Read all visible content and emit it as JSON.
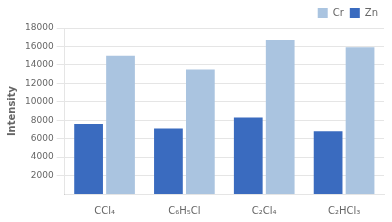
{
  "chart_data": {
    "type": "bar",
    "categories": [
      "CCl₄",
      "C₆H₅Cl",
      "C₂Cl₄",
      "C₂HCl₃"
    ],
    "series": [
      {
        "name": "Zn",
        "color": "#3a6bbf",
        "values": [
          7600,
          7100,
          8300,
          6800
        ]
      },
      {
        "name": "Cr",
        "color": "#aac4e0",
        "values": [
          15000,
          13500,
          16700,
          15900
        ]
      }
    ],
    "y_label": "Intensity",
    "ylim": [
      0,
      18000
    ],
    "yticks": [
      2000,
      4000,
      6000,
      8000,
      10000,
      12000,
      14000,
      16000,
      18000
    ],
    "grid": true,
    "legend": "upper right"
  }
}
